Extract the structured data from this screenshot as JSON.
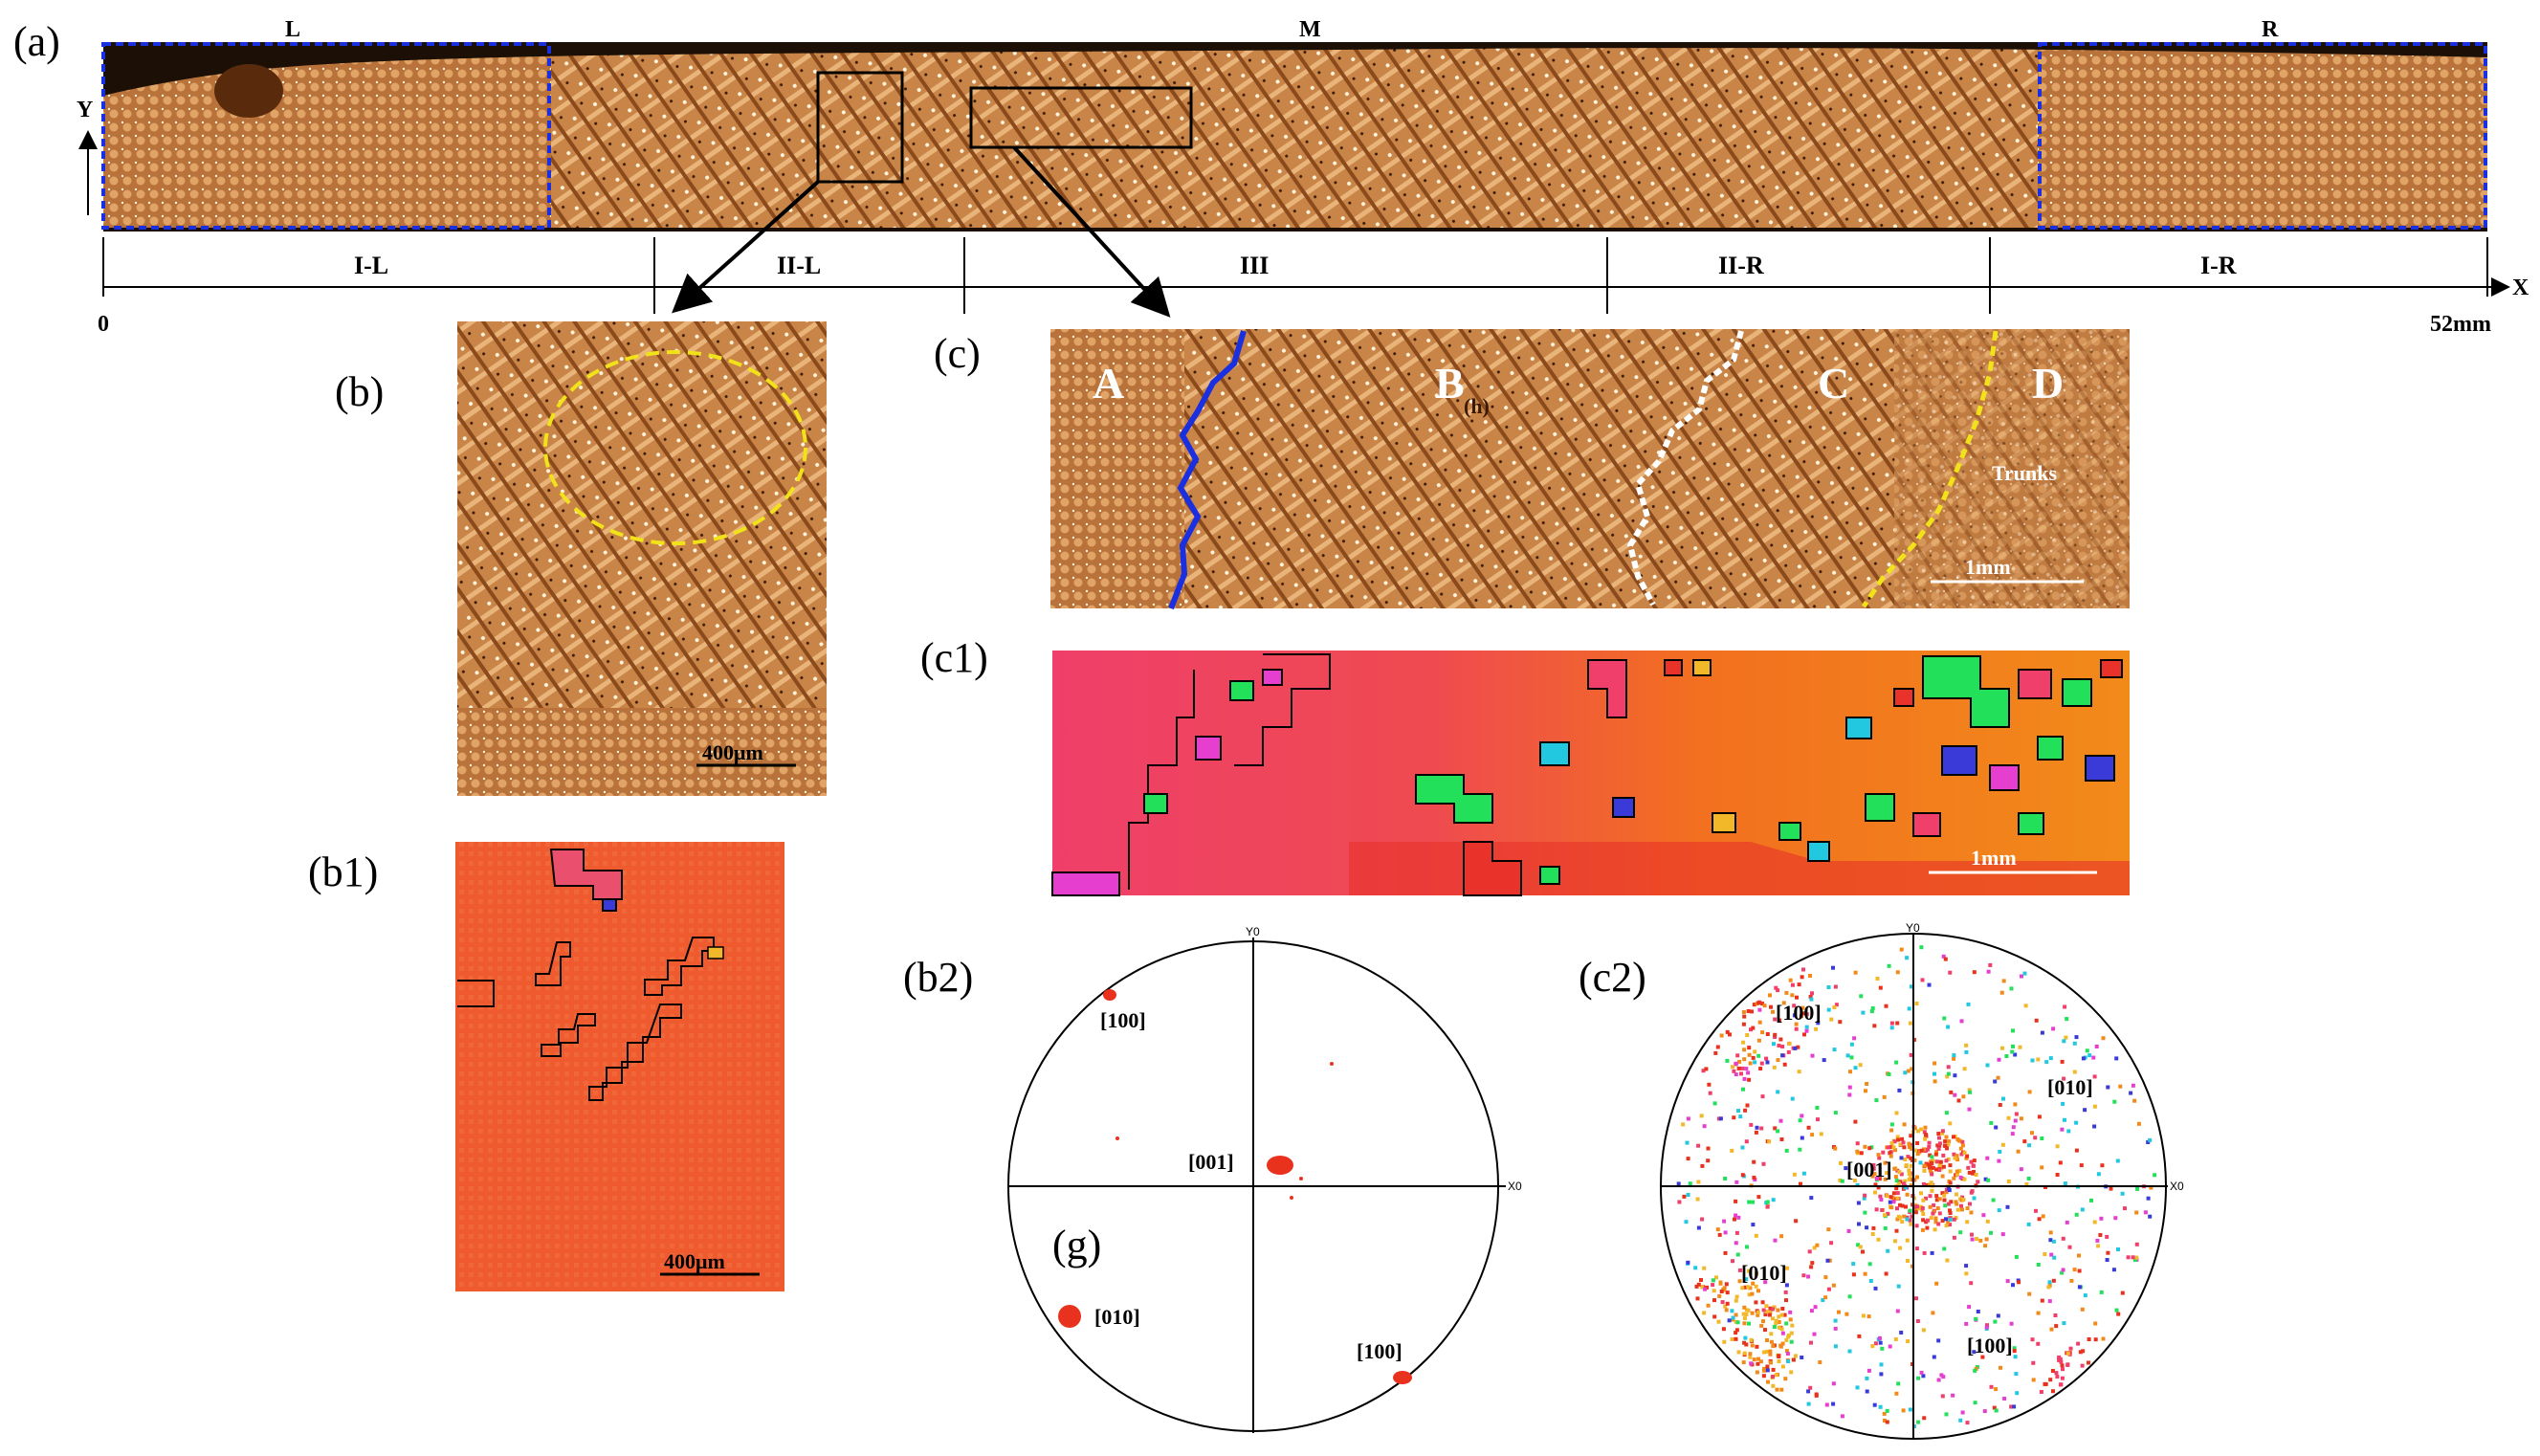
{
  "colors": {
    "microstructure_light": "#d89a5f",
    "microstructure_dark": "#7a3f14",
    "region_box": "#1a2fe0",
    "ebsd_base": "#ef5a2e",
    "ebsd_pink": "#ef3f6a",
    "ebsd_orange": "#f28a1a",
    "boundary_blue": "#1a2fe0",
    "boundary_white": "#ffffff",
    "boundary_yellow": "#f2e21a",
    "circle_yellow": "#f2e21a",
    "pole_red": "#e8321e"
  },
  "panel_a": {
    "label": "(a)",
    "region_left": "L",
    "region_middle": "M",
    "region_right": "R",
    "y_axis_label": "Y",
    "x_axis_label": "X",
    "x_start_label": "0",
    "x_end_label": "52mm",
    "zones": [
      "I-L",
      "II-L",
      "III",
      "II-R",
      "I-R"
    ]
  },
  "panel_b": {
    "label": "(b)",
    "scale_bar": "400μm"
  },
  "panel_b1": {
    "label": "(b1)",
    "scale_bar": "400μm"
  },
  "panel_b2": {
    "label": "(b2)",
    "inner_label": "(g)",
    "poles": [
      "[100]",
      "[001]",
      "[010]",
      "[100]"
    ],
    "axis_top": "Y0",
    "axis_right": "X0"
  },
  "panel_c": {
    "label": "(c)",
    "zone_letters": [
      "A",
      "B",
      "C",
      "D"
    ],
    "small_mark": "(h)",
    "trunks_label": "Trunks",
    "scale_bar": "1mm"
  },
  "panel_c1": {
    "label": "(c1)",
    "scale_bar": "1mm"
  },
  "panel_c2": {
    "label": "(c2)",
    "poles": [
      "[100]",
      "[010]",
      "[001]",
      "[010]",
      "[100]"
    ],
    "axis_top": "Y0",
    "axis_right": "X0"
  }
}
